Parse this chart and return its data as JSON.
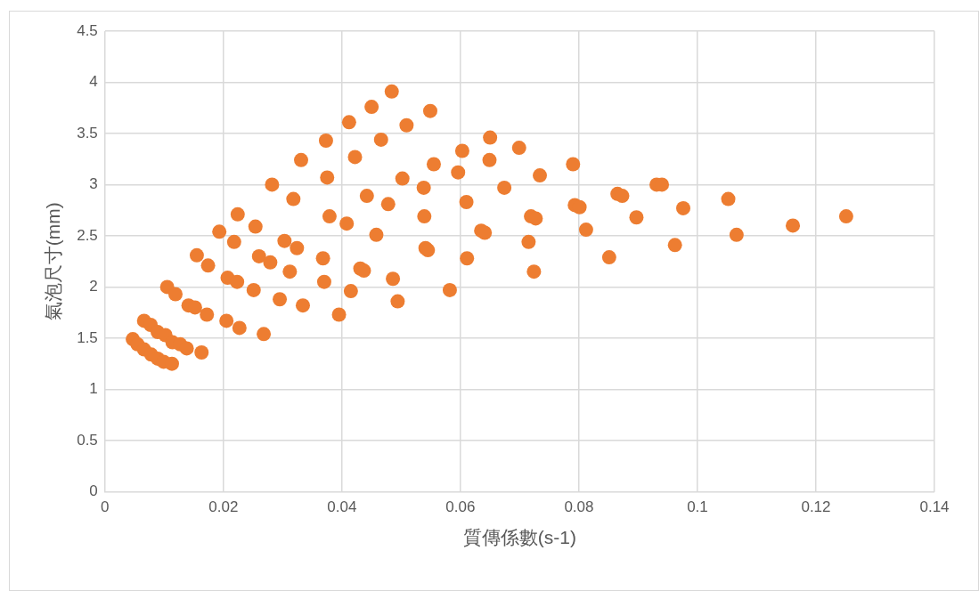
{
  "chart_data": {
    "type": "scatter",
    "xlabel": "質傳係數(s-1)",
    "ylabel": "氣泡尺寸(mm)",
    "xlim": [
      0,
      0.14
    ],
    "xticks": [
      0,
      0.02,
      0.04,
      0.06,
      0.08,
      0.1,
      0.12,
      0.14
    ],
    "ylim": [
      0,
      4.5
    ],
    "yticks": [
      0,
      0.5,
      1,
      1.5,
      2,
      2.5,
      3,
      3.5,
      4,
      4.5
    ],
    "grid": true,
    "marker": "circle",
    "legend": false,
    "series": [
      {
        "color": "#ed7d31",
        "x": [
          0.0047,
          0.0055,
          0.0066,
          0.0078,
          0.0089,
          0.0099,
          0.0113,
          0.0066,
          0.0077,
          0.0089,
          0.0102,
          0.0114,
          0.0127,
          0.0138,
          0.0163,
          0.0105,
          0.0119,
          0.0141,
          0.0152,
          0.0172,
          0.0155,
          0.0174,
          0.0205,
          0.0227,
          0.0268,
          0.0193,
          0.0207,
          0.0223,
          0.0218,
          0.0224,
          0.0254,
          0.0251,
          0.026,
          0.0279,
          0.0282,
          0.0295,
          0.0303,
          0.0312,
          0.0318,
          0.0324,
          0.0331,
          0.0334,
          0.0368,
          0.037,
          0.0373,
          0.0375,
          0.0379,
          0.0395,
          0.0408,
          0.0415,
          0.0412,
          0.0422,
          0.0431,
          0.0437,
          0.0442,
          0.045,
          0.0458,
          0.0466,
          0.0478,
          0.0484,
          0.0486,
          0.0494,
          0.0502,
          0.0509,
          0.0538,
          0.0539,
          0.0541,
          0.0545,
          0.0549,
          0.0555,
          0.0582,
          0.0596,
          0.0603,
          0.061,
          0.0611,
          0.0635,
          0.0641,
          0.0649,
          0.065,
          0.0674,
          0.0699,
          0.0715,
          0.0719,
          0.0724,
          0.0727,
          0.0734,
          0.079,
          0.0793,
          0.0801,
          0.0812,
          0.0851,
          0.0865,
          0.0873,
          0.0897,
          0.0931,
          0.094,
          0.0962,
          0.0976,
          0.1052,
          0.1066,
          0.1161,
          0.1251
        ],
        "values": [
          1.49,
          1.44,
          1.39,
          1.34,
          1.3,
          1.27,
          1.25,
          1.67,
          1.63,
          1.56,
          1.53,
          1.46,
          1.44,
          1.4,
          1.36,
          2.0,
          1.93,
          1.82,
          1.8,
          1.73,
          2.31,
          2.21,
          1.67,
          1.6,
          1.54,
          2.54,
          2.09,
          2.05,
          2.44,
          2.71,
          2.59,
          1.97,
          2.3,
          2.24,
          3.0,
          1.88,
          2.45,
          2.15,
          2.86,
          2.38,
          3.24,
          1.82,
          2.28,
          2.05,
          3.43,
          3.07,
          2.69,
          1.73,
          2.62,
          1.96,
          3.61,
          3.27,
          2.18,
          2.16,
          2.89,
          3.76,
          2.51,
          3.44,
          2.81,
          3.91,
          2.08,
          1.86,
          3.06,
          3.58,
          2.97,
          2.69,
          2.38,
          2.36,
          3.72,
          3.2,
          1.97,
          3.12,
          3.33,
          2.83,
          2.28,
          2.55,
          2.53,
          3.24,
          3.46,
          2.97,
          3.36,
          2.44,
          2.69,
          2.15,
          2.67,
          3.09,
          3.2,
          2.8,
          2.78,
          2.56,
          2.29,
          2.91,
          2.89,
          2.68,
          3.0,
          3.0,
          2.41,
          2.77,
          2.86,
          2.51,
          2.6,
          2.69
        ]
      }
    ]
  }
}
